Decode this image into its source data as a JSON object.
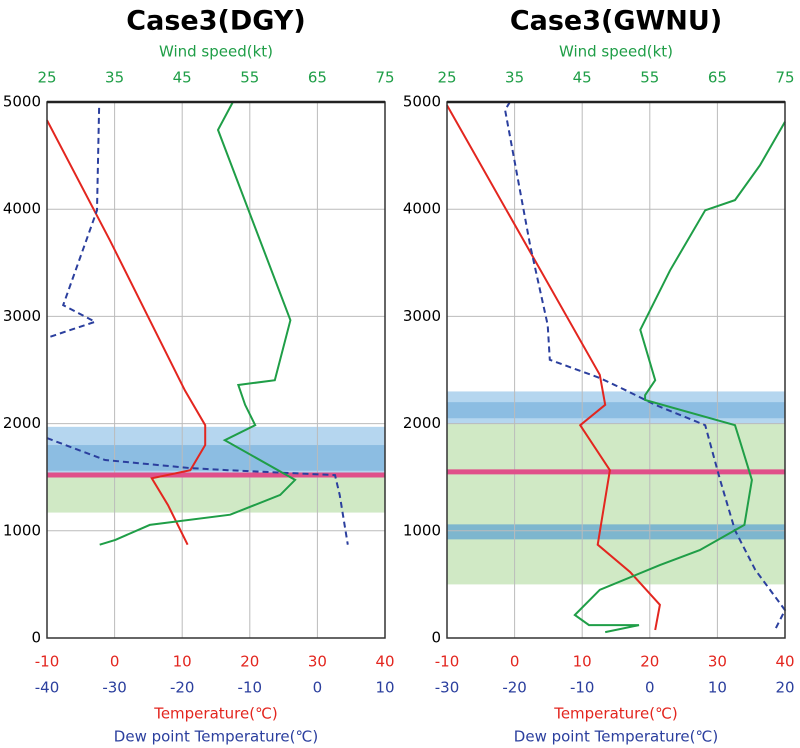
{
  "chart_data": [
    {
      "type": "line",
      "title": "Case3(DGY)",
      "grid": true,
      "ylim": [
        0,
        5000
      ],
      "yticks": [
        0,
        1000,
        2000,
        3000,
        4000,
        5000
      ],
      "x_axes": [
        {
          "label": "Wind speed(kt)",
          "position": "top",
          "color": "#1f9e47",
          "lim": [
            25,
            75
          ],
          "ticks": [
            25,
            35,
            45,
            55,
            65,
            75
          ]
        },
        {
          "label": "Temperature(℃)",
          "position": "bottom",
          "color": "#e3261f",
          "lim": [
            -10,
            40
          ],
          "ticks": [
            -10,
            0,
            10,
            20,
            30,
            40
          ]
        },
        {
          "label": "Dew point Temperature(℃)",
          "position": "bottom",
          "color": "#2b3f9e",
          "lim": [
            -40,
            10
          ],
          "ticks": [
            -40,
            -30,
            -20,
            -10,
            0,
            10
          ]
        }
      ],
      "bands": [
        {
          "ylim": [
            1500,
            1970
          ],
          "color": "rgba(120,180,225,0.55)"
        },
        {
          "ylim": [
            1560,
            1800
          ],
          "color": "rgba(90,160,210,0.45)"
        },
        {
          "ylim": [
            1170,
            1500
          ],
          "color": "rgba(170,215,150,0.55)"
        }
      ],
      "hlines": [
        {
          "y": 1520,
          "color": "#e0508a"
        }
      ],
      "series": [
        {
          "axis": 1,
          "color": "#e3261f",
          "dash": false,
          "x": [
            -10,
            -0.7,
            5.2,
            10.4,
            13.4,
            13.4,
            11.2,
            5.5,
            7.9,
            10.8
          ],
          "y": [
            4830,
            3710,
            2965,
            2310,
            1985,
            1800,
            1565,
            1490,
            1240,
            870
          ]
        },
        {
          "axis": 2,
          "color": "#2b3f9e",
          "dash": true,
          "x": [
            -32.3,
            -32.6,
            -37.6,
            -32.9,
            -40,
            null,
            -40,
            -31.4,
            -18.8,
            -13.2,
            2.6,
            3.3,
            4.5
          ],
          "y": [
            4945,
            3990,
            3105,
            2950,
            2800,
            null,
            1865,
            1660,
            1585,
            1565,
            1520,
            1335,
            870
          ]
        },
        {
          "axis": 0,
          "color": "#1f9e47",
          "dash": false,
          "x": [
            52.5,
            50.3,
            61,
            58.7,
            53.3,
            54.3,
            55.8,
            51.3,
            61.7,
            59.5,
            52.1,
            40.2,
            35.1,
            32.8
          ],
          "y": [
            5000,
            4740,
            2965,
            2405,
            2360,
            2175,
            1985,
            1845,
            1475,
            1335,
            1150,
            1055,
            915,
            870
          ]
        }
      ]
    },
    {
      "type": "line",
      "title": "Case3(GWNU)",
      "grid": true,
      "ylim": [
        0,
        5000
      ],
      "yticks": [
        0,
        1000,
        2000,
        3000,
        4000,
        5000
      ],
      "x_axes": [
        {
          "label": "Wind speed(kt)",
          "position": "top",
          "color": "#1f9e47",
          "lim": [
            25,
            75
          ],
          "ticks": [
            25,
            35,
            45,
            55,
            65,
            75
          ]
        },
        {
          "label": "Temperature(℃)",
          "position": "bottom",
          "color": "#e3261f",
          "lim": [
            -10,
            40
          ],
          "ticks": [
            -10,
            0,
            10,
            20,
            30,
            40
          ]
        },
        {
          "label": "Dew point Temperature(℃)",
          "position": "bottom",
          "color": "#2b3f9e",
          "lim": [
            -30,
            20
          ],
          "ticks": [
            -30,
            -20,
            -10,
            0,
            10,
            20
          ]
        }
      ],
      "bands": [
        {
          "ylim": [
            500,
            2000
          ],
          "color": "rgba(170,215,150,0.55)"
        },
        {
          "ylim": [
            2000,
            2300
          ],
          "color": "rgba(120,180,225,0.55)"
        },
        {
          "ylim": [
            2050,
            2200
          ],
          "color": "rgba(90,160,210,0.45)"
        },
        {
          "ylim": [
            920,
            1060
          ],
          "color": "rgba(90,160,210,0.7)"
        }
      ],
      "hlines": [
        {
          "y": 1550,
          "color": "#e0508a"
        }
      ],
      "series": [
        {
          "axis": 1,
          "color": "#e3261f",
          "dash": false,
          "x": [
            -10,
            12.6,
            13.4,
            9.7,
            14.1,
            12.3,
            17.1,
            21.5,
            20.8
          ],
          "y": [
            4970,
            2455,
            2175,
            1985,
            1565,
            870,
            615,
            310,
            75
          ]
        },
        {
          "axis": 2,
          "color": "#2b3f9e",
          "dash": true,
          "x": [
            -20.7,
            -21.4,
            -17.7,
            -15.1,
            -14.8,
            -7.4,
            -3.7,
            0.8,
            8.2,
            10.4,
            12.6,
            15.6,
            20,
            18.5
          ],
          "y": [
            5000,
            4925,
            3665,
            2920,
            2595,
            2425,
            2315,
            2175,
            1985,
            1475,
            1005,
            635,
            260,
            75
          ]
        },
        {
          "axis": 0,
          "color": "#1f9e47",
          "dash": false,
          "x": [
            75,
            71.3,
            67.6,
            63.2,
            58,
            53.6,
            55.8,
            54.3,
            54.3,
            67.6,
            68.3,
            70.1,
            69,
            62.4,
            56.5,
            47.6,
            43.9,
            46,
            53.4,
            48.4
          ],
          "y": [
            4815,
            4410,
            4085,
            3990,
            3430,
            2875,
            2405,
            2265,
            2220,
            1985,
            1845,
            1475,
            1055,
            820,
            680,
            450,
            215,
            120,
            120,
            55
          ]
        }
      ]
    }
  ]
}
